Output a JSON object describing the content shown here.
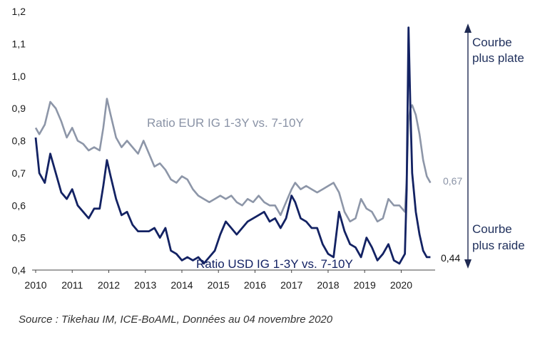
{
  "chart_data": {
    "type": "line",
    "ylim": [
      0.4,
      1.2
    ],
    "xlim": [
      2010,
      2020.85
    ],
    "grid": false,
    "y_ticks": [
      "0,4",
      "0,5",
      "0,6",
      "0,7",
      "0,8",
      "0,9",
      "1,0",
      "1,1",
      "1,2"
    ],
    "x_ticks": [
      "2010",
      "2011",
      "2012",
      "2013",
      "2014",
      "2015",
      "2016",
      "2017",
      "2018",
      "2019",
      "2020"
    ],
    "series": [
      {
        "name": "Ratio EUR IG 1-3Y vs. 7-10Y",
        "color": "#8d96a8",
        "end_label": "0,67",
        "x": [
          2010.0,
          2010.1,
          2010.25,
          2010.4,
          2010.55,
          2010.7,
          2010.85,
          2011.0,
          2011.15,
          2011.3,
          2011.45,
          2011.6,
          2011.75,
          2011.85,
          2011.95,
          2012.05,
          2012.2,
          2012.35,
          2012.5,
          2012.65,
          2012.8,
          2012.95,
          2013.1,
          2013.25,
          2013.4,
          2013.55,
          2013.7,
          2013.85,
          2014.0,
          2014.15,
          2014.3,
          2014.45,
          2014.6,
          2014.75,
          2014.9,
          2015.05,
          2015.2,
          2015.35,
          2015.5,
          2015.65,
          2015.8,
          2015.95,
          2016.1,
          2016.25,
          2016.4,
          2016.55,
          2016.7,
          2016.85,
          2017.0,
          2017.1,
          2017.25,
          2017.4,
          2017.55,
          2017.7,
          2017.85,
          2018.0,
          2018.15,
          2018.3,
          2018.45,
          2018.6,
          2018.75,
          2018.9,
          2019.05,
          2019.2,
          2019.35,
          2019.5,
          2019.65,
          2019.8,
          2019.95,
          2020.1,
          2020.15,
          2020.2,
          2020.25,
          2020.3,
          2020.4,
          2020.5,
          2020.6,
          2020.7,
          2020.8
        ],
        "values": [
          0.84,
          0.82,
          0.85,
          0.92,
          0.9,
          0.86,
          0.81,
          0.84,
          0.8,
          0.79,
          0.77,
          0.78,
          0.77,
          0.84,
          0.93,
          0.88,
          0.81,
          0.78,
          0.8,
          0.78,
          0.76,
          0.8,
          0.76,
          0.72,
          0.73,
          0.71,
          0.68,
          0.67,
          0.69,
          0.68,
          0.65,
          0.63,
          0.62,
          0.61,
          0.62,
          0.63,
          0.62,
          0.63,
          0.61,
          0.6,
          0.62,
          0.61,
          0.63,
          0.61,
          0.6,
          0.6,
          0.57,
          0.61,
          0.65,
          0.67,
          0.65,
          0.66,
          0.65,
          0.64,
          0.65,
          0.66,
          0.67,
          0.64,
          0.58,
          0.55,
          0.56,
          0.62,
          0.59,
          0.58,
          0.55,
          0.56,
          0.62,
          0.6,
          0.6,
          0.58,
          0.68,
          0.86,
          0.9,
          0.91,
          0.88,
          0.82,
          0.74,
          0.69,
          0.67
        ]
      },
      {
        "name": "Ratio USD IG 1-3Y vs. 7-10Y",
        "color": "#132263",
        "end_label": "0,44",
        "x": [
          2010.0,
          2010.1,
          2010.25,
          2010.4,
          2010.55,
          2010.7,
          2010.85,
          2011.0,
          2011.15,
          2011.3,
          2011.45,
          2011.6,
          2011.75,
          2011.85,
          2011.95,
          2012.05,
          2012.2,
          2012.35,
          2012.5,
          2012.65,
          2012.8,
          2012.95,
          2013.1,
          2013.25,
          2013.4,
          2013.55,
          2013.7,
          2013.85,
          2014.0,
          2014.15,
          2014.3,
          2014.45,
          2014.6,
          2014.75,
          2014.9,
          2015.05,
          2015.2,
          2015.35,
          2015.5,
          2015.65,
          2015.8,
          2015.95,
          2016.1,
          2016.25,
          2016.4,
          2016.55,
          2016.7,
          2016.85,
          2017.0,
          2017.1,
          2017.25,
          2017.4,
          2017.55,
          2017.7,
          2017.85,
          2018.0,
          2018.15,
          2018.3,
          2018.45,
          2018.6,
          2018.75,
          2018.9,
          2019.05,
          2019.2,
          2019.35,
          2019.5,
          2019.65,
          2019.8,
          2019.95,
          2020.1,
          2020.15,
          2020.2,
          2020.25,
          2020.3,
          2020.4,
          2020.5,
          2020.6,
          2020.7,
          2020.8
        ],
        "values": [
          0.81,
          0.7,
          0.67,
          0.76,
          0.7,
          0.64,
          0.62,
          0.65,
          0.6,
          0.58,
          0.56,
          0.59,
          0.59,
          0.66,
          0.74,
          0.69,
          0.62,
          0.57,
          0.58,
          0.54,
          0.52,
          0.52,
          0.52,
          0.53,
          0.5,
          0.53,
          0.46,
          0.45,
          0.43,
          0.44,
          0.43,
          0.44,
          0.42,
          0.44,
          0.46,
          0.51,
          0.55,
          0.53,
          0.51,
          0.53,
          0.55,
          0.56,
          0.57,
          0.58,
          0.55,
          0.56,
          0.53,
          0.56,
          0.63,
          0.61,
          0.56,
          0.55,
          0.53,
          0.53,
          0.48,
          0.45,
          0.44,
          0.58,
          0.52,
          0.48,
          0.47,
          0.44,
          0.5,
          0.47,
          0.43,
          0.45,
          0.48,
          0.43,
          0.42,
          0.45,
          0.65,
          1.15,
          0.9,
          0.7,
          0.58,
          0.51,
          0.46,
          0.44,
          0.44
        ]
      }
    ]
  },
  "annotations": {
    "flatter_line1": "Courbe",
    "flatter_line2": "plus plate",
    "steeper_line1": "Courbe",
    "steeper_line2": "plus raide"
  },
  "source": "Source : Tikehau IM, ICE-BoAML, Données au 04 novembre 2020"
}
